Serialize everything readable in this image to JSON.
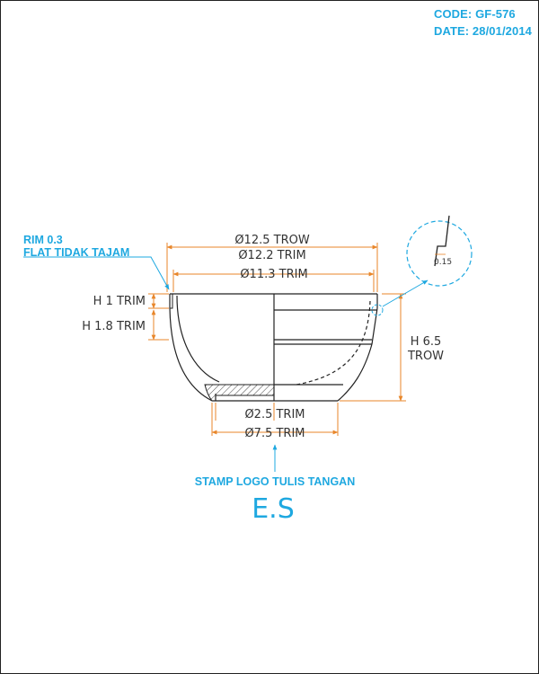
{
  "header": {
    "code": "CODE: GF-576",
    "date": "DATE: 28/01/2014"
  },
  "dimensions": {
    "d_trow_outer": "Ø12.5 TROW",
    "d_trim_outer": "Ø12.2 TRIM",
    "d_trim_inner": "Ø11.3 TRIM",
    "h_trim_1": "H 1 TRIM",
    "h_trim_18": "H 1.8 TRIM",
    "h_trow_line1": "H 6.5",
    "h_trow_line2": "TROW",
    "d_foot_inner": "Ø2.5 TRIM",
    "d_foot_outer": "Ø7.5 TRIM",
    "detail_offset": "0.15"
  },
  "notes": {
    "rim_line1": "RIM 0.3",
    "rim_line2": "FLAT TIDAK TAJAM",
    "stamp_label": "STAMP LOGO TULIS TANGAN",
    "stamp_text": "E.S"
  },
  "colors": {
    "dimension": "#e8862a",
    "annotation": "#1ea8e0",
    "outline": "#222222"
  }
}
